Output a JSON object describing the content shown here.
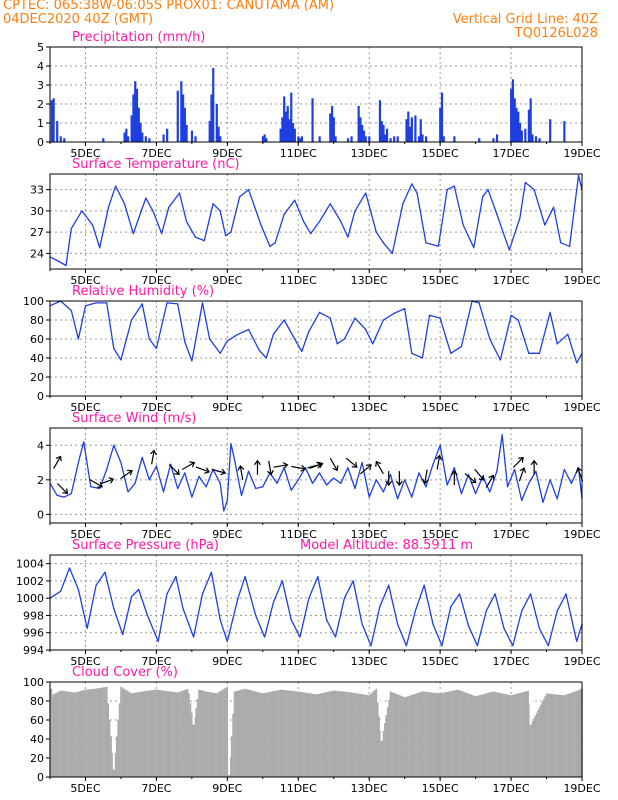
{
  "header": {
    "left_line1": "CPTEC:   065:38W-06:05S   PROX01: CANUTAMA (AM)",
    "left_line2": "04DEC2020 40Z (GMT)",
    "right_line1": "Vertical Grid Line: 40Z",
    "right_line2": "TQ0126L028"
  },
  "colors": {
    "header": "#ff7f0e",
    "title": "#ff1aa6",
    "series": "#1f3fe0",
    "cloud": "#ababab",
    "grid": "#9a9a9a"
  },
  "x_ticks": [
    "5DEC",
    "7DEC",
    "9DEC",
    "11DEC",
    "13DEC",
    "15DEC",
    "17DEC",
    "19DEC"
  ],
  "chart_data": [
    {
      "type": "bar",
      "title": "Precipitation (mm/h)",
      "ylim": [
        0,
        5
      ],
      "yticks": [
        "0",
        "1",
        "2",
        "3",
        "4",
        "5"
      ],
      "x_range_days": [
        4.0,
        19.0
      ],
      "x": [
        4.05,
        4.1,
        4.2,
        4.3,
        4.4,
        5.5,
        6.1,
        6.15,
        6.2,
        6.3,
        6.35,
        6.4,
        6.45,
        6.5,
        6.55,
        6.6,
        6.7,
        6.8,
        7.2,
        7.3,
        7.6,
        7.7,
        7.75,
        7.8,
        7.85,
        8.0,
        8.1,
        8.5,
        8.55,
        8.6,
        8.7,
        8.75,
        8.8,
        10.0,
        10.05,
        10.1,
        10.5,
        10.55,
        10.6,
        10.65,
        10.7,
        10.75,
        10.8,
        10.85,
        10.9,
        11.0,
        11.05,
        11.1,
        11.4,
        11.6,
        11.9,
        11.95,
        12.0,
        12.05,
        12.4,
        12.5,
        12.7,
        12.75,
        12.8,
        12.85,
        12.9,
        13.0,
        13.3,
        13.35,
        13.4,
        13.45,
        13.5,
        13.6,
        13.7,
        13.8,
        14.05,
        14.1,
        14.15,
        14.2,
        14.3,
        14.4,
        14.45,
        14.5,
        14.6,
        15.0,
        15.05,
        15.1,
        15.4,
        16.1,
        16.5,
        16.6,
        17.0,
        17.05,
        17.1,
        17.15,
        17.2,
        17.25,
        17.3,
        17.4,
        17.5,
        17.55,
        17.6,
        17.7,
        17.8,
        18.1,
        18.5
      ],
      "values": [
        2.2,
        2.3,
        1.1,
        0.3,
        0.2,
        0.2,
        0.5,
        0.7,
        0.3,
        1.4,
        2.5,
        3.2,
        2.8,
        1.8,
        1.0,
        0.5,
        0.3,
        0.2,
        0.4,
        0.7,
        2.7,
        3.2,
        2.5,
        1.8,
        0.9,
        0.6,
        0.3,
        1.1,
        2.5,
        3.9,
        2.0,
        0.8,
        0.3,
        0.3,
        0.4,
        0.2,
        0.7,
        1.3,
        2.4,
        1.6,
        1.9,
        1.2,
        2.6,
        1.0,
        0.7,
        0.3,
        0.2,
        0.3,
        2.3,
        0.3,
        1.5,
        1.9,
        1.3,
        0.3,
        0.2,
        0.3,
        1.9,
        1.3,
        0.9,
        0.6,
        0.3,
        0.3,
        2.2,
        1.1,
        0.9,
        0.4,
        0.7,
        0.2,
        0.3,
        0.3,
        1.2,
        1.6,
        0.8,
        1.3,
        1.4,
        0.3,
        1.2,
        0.4,
        0.3,
        1.8,
        2.6,
        0.3,
        0.3,
        0.2,
        0.2,
        0.4,
        2.8,
        3.3,
        2.3,
        1.8,
        1.6,
        1.0,
        0.6,
        0.7,
        1.7,
        2.3,
        0.4,
        0.3,
        0.2,
        1.2,
        1.1
      ]
    },
    {
      "type": "line",
      "title": "Surface Temperature (nC)",
      "ylim": [
        21.8,
        35.2
      ],
      "ytick_values": [
        24,
        27,
        30,
        33
      ],
      "yticks": [
        "24",
        "27",
        "30",
        "33"
      ],
      "x": [
        4.0,
        4.2,
        4.45,
        4.6,
        4.9,
        5.2,
        5.4,
        5.65,
        5.85,
        6.1,
        6.35,
        6.7,
        6.9,
        7.15,
        7.35,
        7.65,
        7.85,
        8.1,
        8.35,
        8.6,
        8.8,
        8.95,
        9.1,
        9.35,
        9.6,
        9.95,
        10.2,
        10.35,
        10.6,
        10.9,
        11.15,
        11.35,
        11.6,
        11.9,
        12.2,
        12.4,
        12.6,
        12.9,
        13.2,
        13.4,
        13.65,
        13.95,
        14.2,
        14.35,
        14.6,
        14.95,
        15.2,
        15.4,
        15.65,
        15.95,
        16.2,
        16.35,
        16.6,
        16.95,
        17.25,
        17.4,
        17.65,
        17.95,
        18.2,
        18.4,
        18.65,
        18.9,
        19.0
      ],
      "values": [
        23.5,
        23.0,
        22.3,
        27.5,
        30.0,
        28.0,
        24.8,
        30.5,
        33.5,
        31.0,
        26.8,
        31.8,
        30.0,
        26.8,
        30.5,
        32.5,
        28.5,
        26.3,
        25.8,
        31.0,
        30.0,
        26.5,
        27.0,
        32.0,
        33.0,
        28.0,
        25.0,
        25.5,
        29.5,
        31.5,
        28.5,
        26.8,
        28.5,
        31.0,
        28.5,
        26.3,
        30.0,
        32.5,
        27.0,
        25.5,
        24.0,
        31.0,
        33.8,
        32.5,
        25.5,
        25.0,
        33.0,
        33.5,
        28.0,
        24.8,
        32.0,
        33.0,
        29.5,
        24.5,
        29.0,
        34.0,
        33.0,
        28.0,
        30.5,
        25.5,
        25.0,
        35.0,
        33.0
      ]
    },
    {
      "type": "line",
      "title": "Relative Humidity (%)",
      "ylim": [
        0,
        100
      ],
      "yticks": [
        "0",
        "20",
        "40",
        "60",
        "80",
        "100"
      ],
      "x": [
        4.0,
        4.3,
        4.6,
        4.8,
        5.0,
        5.3,
        5.6,
        5.8,
        6.0,
        6.3,
        6.6,
        6.8,
        7.0,
        7.3,
        7.6,
        7.8,
        8.0,
        8.3,
        8.5,
        8.8,
        9.0,
        9.3,
        9.6,
        9.9,
        10.1,
        10.3,
        10.6,
        10.9,
        11.1,
        11.3,
        11.6,
        11.9,
        12.1,
        12.3,
        12.6,
        12.9,
        13.1,
        13.4,
        13.7,
        14.0,
        14.2,
        14.5,
        14.7,
        15.0,
        15.3,
        15.6,
        15.9,
        16.1,
        16.4,
        16.7,
        17.0,
        17.2,
        17.5,
        17.8,
        18.1,
        18.3,
        18.6,
        18.85,
        19.0
      ],
      "values": [
        95,
        100,
        90,
        60,
        95,
        98,
        98,
        50,
        38,
        80,
        97,
        60,
        50,
        98,
        97,
        57,
        37,
        98,
        60,
        45,
        58,
        65,
        70,
        48,
        40,
        65,
        80,
        60,
        47,
        68,
        88,
        82,
        55,
        60,
        82,
        70,
        55,
        80,
        87,
        92,
        45,
        40,
        85,
        82,
        45,
        52,
        100,
        98,
        60,
        38,
        85,
        80,
        45,
        45,
        88,
        55,
        65,
        35,
        45
      ]
    },
    {
      "type": "line",
      "title": "Surface Wind (m/s)",
      "ylim": [
        -0.5,
        5.0
      ],
      "yticks": [
        "0",
        "2",
        "4"
      ],
      "x": [
        4.0,
        4.2,
        4.4,
        4.6,
        4.8,
        4.95,
        5.15,
        5.4,
        5.6,
        5.8,
        6.0,
        6.2,
        6.4,
        6.6,
        6.8,
        7.0,
        7.2,
        7.4,
        7.6,
        7.8,
        8.0,
        8.2,
        8.4,
        8.6,
        8.8,
        8.9,
        9.0,
        9.1,
        9.2,
        9.4,
        9.6,
        9.8,
        10.0,
        10.2,
        10.4,
        10.6,
        10.8,
        11.0,
        11.2,
        11.4,
        11.6,
        11.8,
        12.0,
        12.2,
        12.4,
        12.6,
        12.8,
        13.0,
        13.2,
        13.4,
        13.6,
        13.8,
        14.0,
        14.2,
        14.4,
        14.6,
        14.8,
        15.0,
        15.2,
        15.4,
        15.6,
        15.8,
        16.0,
        16.2,
        16.4,
        16.6,
        16.75,
        16.9,
        17.1,
        17.3,
        17.5,
        17.7,
        17.9,
        18.1,
        18.3,
        18.5,
        18.7,
        18.9,
        19.0
      ],
      "values": [
        1.8,
        1.1,
        1.0,
        1.2,
        3.0,
        4.2,
        1.6,
        1.5,
        2.6,
        4.0,
        3.0,
        1.3,
        1.8,
        3.3,
        2.0,
        2.8,
        1.3,
        2.9,
        1.5,
        2.4,
        1.0,
        2.2,
        1.6,
        2.6,
        1.8,
        0.2,
        0.8,
        4.1,
        3.2,
        1.1,
        2.5,
        1.5,
        1.6,
        2.4,
        1.8,
        2.7,
        1.4,
        2.0,
        2.7,
        1.8,
        2.4,
        1.7,
        2.1,
        1.8,
        2.7,
        1.5,
        3.0,
        1.0,
        2.0,
        1.3,
        2.3,
        0.9,
        2.0,
        1.0,
        2.4,
        1.6,
        2.9,
        4.0,
        1.7,
        2.7,
        1.2,
        2.3,
        1.2,
        2.2,
        1.3,
        2.5,
        4.6,
        1.6,
        2.6,
        0.8,
        1.8,
        2.5,
        0.7,
        2.0,
        0.9,
        2.6,
        1.8,
        2.7,
        0.9
      ]
    },
    {
      "type": "line",
      "title": "Surface Pressure (hPa)",
      "annotation": "Model Altitude: 88.5911 m",
      "ylim": [
        994,
        1005
      ],
      "ytick_values": [
        994,
        996,
        998,
        1000,
        1002,
        1004
      ],
      "yticks": [
        "994",
        "996",
        "998",
        "1000",
        "1002",
        "1004"
      ],
      "x": [
        4.0,
        4.3,
        4.55,
        4.8,
        5.05,
        5.3,
        5.55,
        5.8,
        6.05,
        6.3,
        6.5,
        6.75,
        7.05,
        7.3,
        7.55,
        7.75,
        8.05,
        8.3,
        8.55,
        8.8,
        9.0,
        9.3,
        9.5,
        9.8,
        10.05,
        10.3,
        10.55,
        10.8,
        11.05,
        11.3,
        11.55,
        11.8,
        12.05,
        12.3,
        12.55,
        12.8,
        13.05,
        13.3,
        13.55,
        13.8,
        14.05,
        14.3,
        14.55,
        14.8,
        15.05,
        15.3,
        15.55,
        15.8,
        16.05,
        16.3,
        16.55,
        16.8,
        17.05,
        17.3,
        17.55,
        17.8,
        18.05,
        18.3,
        18.55,
        18.85,
        19.0
      ],
      "values": [
        1000.0,
        1000.8,
        1003.5,
        1001.0,
        996.5,
        1001.5,
        1003.0,
        998.8,
        995.8,
        1000.2,
        1001.0,
        998.0,
        995.0,
        1000.5,
        1002.5,
        998.8,
        995.5,
        1000.5,
        1003.0,
        997.5,
        995.0,
        1000.0,
        1002.5,
        998.0,
        995.5,
        999.5,
        1002.0,
        997.5,
        995.5,
        1000.0,
        1002.5,
        997.5,
        995.5,
        1000.0,
        1002.0,
        997.0,
        994.5,
        999.0,
        1001.5,
        997.0,
        994.5,
        998.5,
        1001.5,
        997.0,
        994.5,
        999.0,
        1000.5,
        996.8,
        994.5,
        998.5,
        1000.5,
        996.5,
        994.5,
        998.5,
        1000.5,
        996.5,
        994.5,
        998.5,
        1000.5,
        995.0,
        997.0
      ]
    },
    {
      "type": "area",
      "title": "Cloud Cover (%)",
      "ylim": [
        0,
        100
      ],
      "yticks": [
        "0",
        "20",
        "40",
        "60",
        "80",
        "100"
      ],
      "typical_value": 93,
      "x": [
        4.05,
        4.3,
        4.7,
        5.0,
        5.3,
        5.6,
        5.8,
        6.0,
        6.3,
        6.6,
        7.0,
        7.6,
        7.9,
        8.05,
        8.2,
        8.4,
        8.7,
        9.0,
        9.05,
        9.2,
        9.5,
        10.0,
        10.5,
        11.0,
        11.5,
        12.0,
        12.5,
        13.0,
        13.2,
        13.35,
        13.6,
        14.0,
        14.5,
        15.0,
        15.5,
        16.0,
        16.5,
        17.0,
        17.5,
        17.55,
        18.0,
        18.5,
        18.8,
        18.95
      ],
      "values": [
        86,
        91,
        89,
        92,
        93,
        95,
        8,
        95,
        88,
        90,
        92,
        89,
        93,
        55,
        92,
        90,
        88,
        95,
        2,
        90,
        93,
        88,
        92,
        90,
        87,
        91,
        89,
        86,
        93,
        38,
        90,
        84,
        90,
        88,
        92,
        85,
        90,
        86,
        91,
        55,
        88,
        86,
        90,
        92
      ]
    }
  ]
}
